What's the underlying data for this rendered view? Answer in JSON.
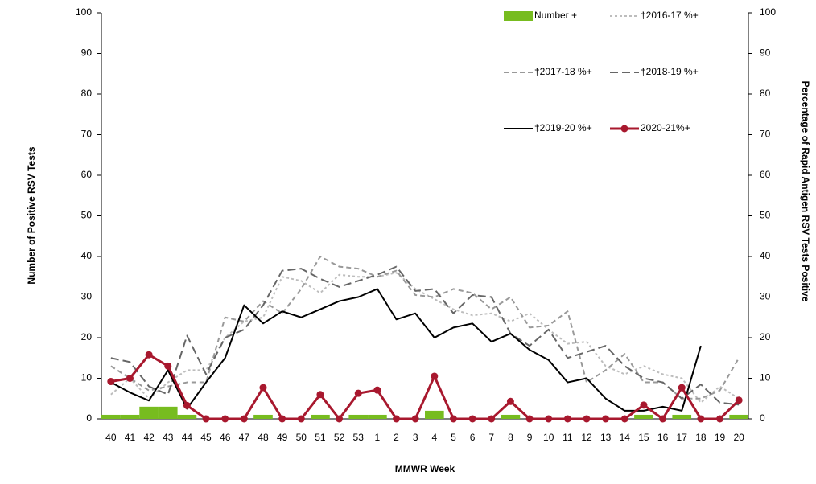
{
  "chart_data": {
    "type": "combo",
    "y_label": "Number of Positive RSV Tests",
    "y2_label": "Percentage of Rapid Antigen RSV Tests Positive",
    "x_label": "MMWR Week",
    "categories": [
      "40",
      "41",
      "42",
      "43",
      "44",
      "45",
      "46",
      "47",
      "48",
      "49",
      "50",
      "51",
      "52",
      "53",
      "1",
      "2",
      "3",
      "4",
      "5",
      "6",
      "7",
      "8",
      "9",
      "10",
      "11",
      "12",
      "13",
      "14",
      "15",
      "16",
      "17",
      "18",
      "19",
      "20"
    ],
    "ylim": [
      0,
      100
    ],
    "yticks": [
      0,
      10,
      20,
      30,
      40,
      50,
      60,
      70,
      80,
      90,
      100
    ],
    "y2lim": [
      0,
      100
    ],
    "y2ticks": [
      0,
      10,
      20,
      30,
      40,
      50,
      60,
      70,
      80,
      90,
      100
    ],
    "series": [
      {
        "name": "Number +",
        "type": "bar",
        "color": "#77bc1f",
        "values": [
          1,
          1,
          3,
          3,
          1,
          0,
          0,
          0,
          1,
          0,
          0,
          1,
          0,
          1,
          1,
          0,
          0,
          2,
          0,
          0,
          0,
          1,
          0,
          0,
          0,
          0,
          0,
          0,
          1,
          0,
          1,
          0,
          0,
          1
        ]
      },
      {
        "name": "†2016-17 %+",
        "type": "line",
        "axis": "y2",
        "color": "#bdbdbd",
        "dash": "3,3",
        "width": 2,
        "values": [
          6,
          10,
          5,
          9,
          12,
          12,
          20,
          24,
          25,
          35,
          34,
          31,
          35.5,
          35,
          35,
          36,
          32,
          29.5,
          27,
          25.5,
          26,
          24,
          26,
          22,
          18.5,
          19,
          13,
          11,
          13,
          11,
          10,
          4,
          8,
          5
        ]
      },
      {
        "name": "†2017-18 %+",
        "type": "line",
        "axis": "y2",
        "color": "#999999",
        "dash": "6,4",
        "width": 2,
        "values": [
          13,
          10,
          7,
          8,
          9,
          9,
          25,
          24,
          29,
          26,
          32,
          40,
          37.5,
          37,
          35,
          36.5,
          30.5,
          30,
          32,
          31,
          27,
          30,
          22.5,
          23,
          26.5,
          9,
          12,
          16,
          9,
          9,
          5,
          5,
          7,
          15
        ]
      },
      {
        "name": "†2018-19 %+",
        "type": "line",
        "axis": "y2",
        "color": "#666666",
        "dash": "10,5",
        "width": 2,
        "values": [
          15,
          14,
          8,
          6,
          20.5,
          11,
          20,
          22,
          28,
          36.5,
          37,
          34.5,
          32.5,
          34,
          35.5,
          37.5,
          31.5,
          32,
          26,
          30.5,
          30,
          21,
          18,
          22,
          15,
          16.5,
          18,
          13,
          10,
          9,
          5,
          8.5,
          4,
          3.5
        ]
      },
      {
        "name": "†2019-20 %+",
        "type": "line",
        "axis": "y2",
        "color": "#000000",
        "width": 2,
        "values": [
          9,
          6.5,
          4.5,
          12,
          2.5,
          9,
          15,
          28,
          23.5,
          26.5,
          25,
          27,
          29,
          30,
          32,
          24.5,
          26,
          20,
          22.5,
          23.5,
          19,
          21,
          17,
          14.5,
          9,
          10,
          5,
          2,
          2,
          3,
          2,
          18,
          null,
          null
        ]
      },
      {
        "name": "2020-21%+",
        "type": "line",
        "axis": "y2",
        "color": "#a8182e",
        "width": 3,
        "marker": true,
        "values": [
          9.2,
          10,
          15.8,
          13,
          3.3,
          0,
          0,
          0,
          7.7,
          0,
          0,
          6,
          0,
          6.3,
          7.1,
          0,
          0,
          10.5,
          0,
          0,
          0,
          4.3,
          0,
          0,
          0,
          0,
          0,
          0,
          3.4,
          0,
          7.7,
          0,
          0,
          4.6
        ]
      }
    ]
  }
}
